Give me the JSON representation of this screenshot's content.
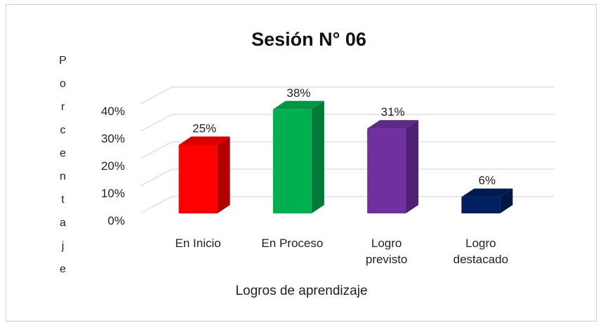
{
  "chart_data": {
    "type": "bar3d",
    "title": "Sesión N° 06",
    "x_label": "Logros de aprendizaje",
    "y_label": "Porcentaje",
    "categories": [
      "En Inicio",
      "En Proceso",
      "Logro previsto",
      "Logro destacado"
    ],
    "values": [
      25,
      38,
      31,
      6
    ],
    "value_labels": [
      "25%",
      "38%",
      "31%",
      "6%"
    ],
    "colors": [
      "#ff0000",
      "#00b050",
      "#7030a0",
      "#002060"
    ],
    "ylim": [
      0,
      40
    ],
    "yticks": [
      {
        "value": 0,
        "label": "0%"
      },
      {
        "value": 10,
        "label": "10%"
      },
      {
        "value": 20,
        "label": "20%"
      },
      {
        "value": 30,
        "label": "30%"
      },
      {
        "value": 40,
        "label": "40%"
      }
    ],
    "grid": true
  }
}
